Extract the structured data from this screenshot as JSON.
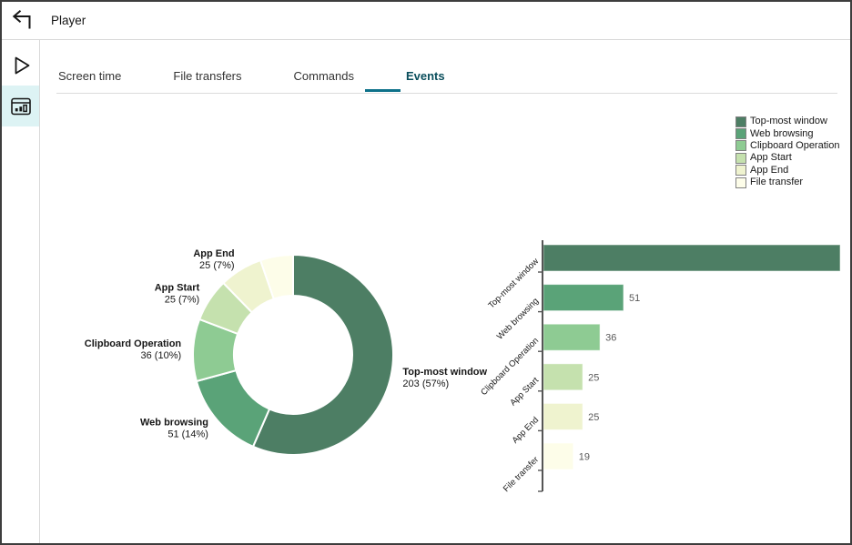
{
  "window": {
    "title": "Player"
  },
  "sidebar": {
    "items": [
      {
        "id": "player",
        "icon": "play-icon",
        "active": false
      },
      {
        "id": "charts",
        "icon": "bar-chart-icon",
        "active": true
      }
    ]
  },
  "tabs": [
    {
      "label": "Screen time",
      "active": false
    },
    {
      "label": "File transfers",
      "active": false
    },
    {
      "label": "Commands",
      "active": false
    },
    {
      "label": "Events",
      "active": true
    }
  ],
  "colors": {
    "accent_underline": "#0d7189",
    "active_tab_text": "#0a4e5c",
    "sidebar_active_bg": "#ddf3f4",
    "axis": "#555555",
    "value_label": "#595959",
    "series": [
      "#4d7e64",
      "#5aa378",
      "#8ecb93",
      "#c5e1ae",
      "#eff3cf",
      "#fdfde9"
    ]
  },
  "chart_data": [
    {
      "type": "pie",
      "subtype": "donut",
      "categories": [
        "Top-most window",
        "Web browsing",
        "Clipboard Operation",
        "App Start",
        "App End",
        "File transfer"
      ],
      "values": [
        203,
        51,
        36,
        25,
        25,
        19
      ],
      "percents": [
        57,
        14,
        10,
        7,
        7,
        5
      ],
      "slice_label_visible": [
        true,
        true,
        true,
        true,
        true,
        false
      ],
      "colors": [
        "#4d7e64",
        "#5aa378",
        "#8ecb93",
        "#c5e1ae",
        "#eff3cf",
        "#fdfde9"
      ],
      "legend": {
        "position": "top-right",
        "entries": [
          "Top-most window",
          "Web browsing",
          "Clipboard Operation",
          "App Start",
          "App End",
          "File transfer"
        ]
      }
    },
    {
      "type": "bar",
      "orientation": "horizontal",
      "categories": [
        "Top-most window",
        "Web browsing",
        "Clipboard Operation",
        "App Start",
        "App End",
        "File transfer"
      ],
      "values": [
        203,
        51,
        36,
        25,
        25,
        19
      ],
      "colors": [
        "#4d7e64",
        "#5aa378",
        "#8ecb93",
        "#c5e1ae",
        "#eff3cf",
        "#fdfde9"
      ],
      "xmax": 189,
      "value_label_visible": [
        false,
        true,
        true,
        true,
        true,
        true
      ],
      "grid": false
    }
  ]
}
